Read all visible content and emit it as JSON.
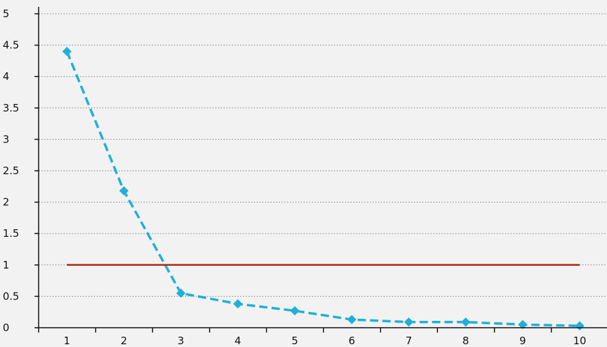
{
  "chart_data": {
    "type": "line",
    "title": "",
    "xlabel": "",
    "ylabel": "",
    "x": [
      1,
      2,
      3,
      4,
      5,
      6,
      7,
      8,
      9,
      10
    ],
    "xticks": [
      "1",
      "2",
      "3",
      "4",
      "5",
      "6",
      "7",
      "8",
      "9",
      "10"
    ],
    "ylim": [
      0,
      5
    ],
    "yticks": [
      "0",
      "0.5",
      "1",
      "1.5",
      "2",
      "2.5",
      "3",
      "3.5",
      "4",
      "4.5",
      "5"
    ],
    "grid": true,
    "legend": "none",
    "series": [
      {
        "values": [
          4.4,
          2.18,
          0.55,
          0.38,
          0.27,
          0.13,
          0.09,
          0.09,
          0.05,
          0.03
        ],
        "color": "#1fb0d8",
        "line_style": "dashed",
        "marker": "diamond"
      },
      {
        "values": [
          1,
          1,
          1,
          1,
          1,
          1,
          1,
          1,
          1,
          1
        ],
        "color": "#a52a0f",
        "line_style": "solid",
        "marker": "none"
      }
    ]
  }
}
